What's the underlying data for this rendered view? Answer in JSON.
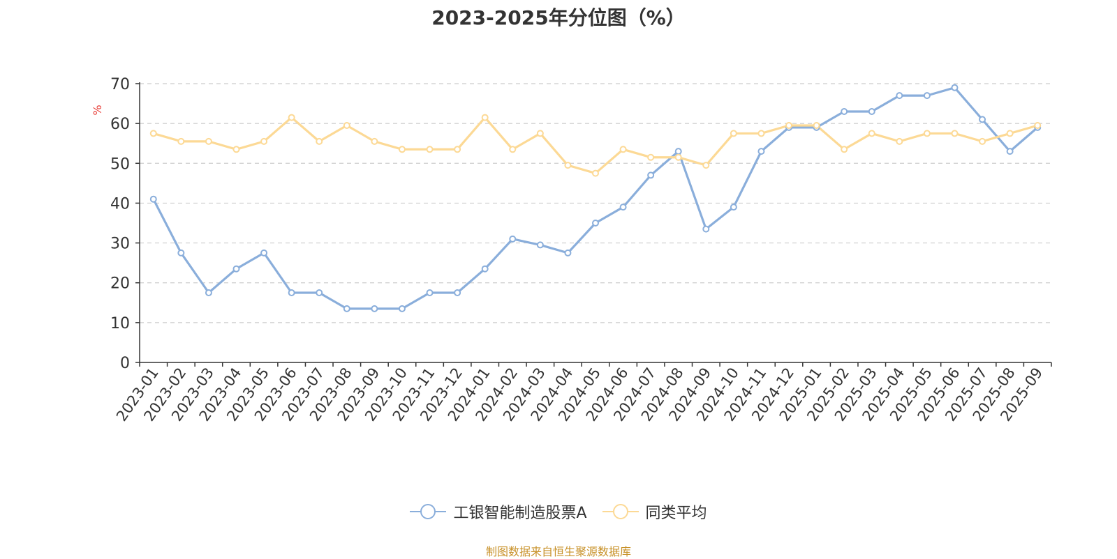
{
  "chart_data": {
    "type": "line",
    "title": "2023-2025年分位图（%）",
    "ylabel": "%",
    "xlabel": "",
    "ylim": [
      0,
      70
    ],
    "yticks": [
      0,
      10,
      20,
      30,
      40,
      50,
      60,
      70
    ],
    "grid": true,
    "legend_position": "bottom",
    "categories": [
      "2023-01",
      "2023-02",
      "2023-03",
      "2023-04",
      "2023-05",
      "2023-06",
      "2023-07",
      "2023-08",
      "2023-09",
      "2023-10",
      "2023-11",
      "2023-12",
      "2024-01",
      "2024-02",
      "2024-03",
      "2024-04",
      "2024-05",
      "2024-06",
      "2024-07",
      "2024-08",
      "2024-09",
      "2024-10",
      "2024-11",
      "2024-12",
      "2025-01",
      "2025-02",
      "2025-03",
      "2025-04",
      "2025-05",
      "2025-06",
      "2025-07",
      "2025-08",
      "2025-09"
    ],
    "series": [
      {
        "name": "工银智能制造股票A",
        "color": "#8aaedb",
        "values": [
          41,
          27.5,
          17.5,
          23.5,
          27.5,
          17.5,
          17.5,
          13.5,
          13.5,
          13.5,
          17.5,
          17.5,
          23.5,
          31,
          29.5,
          27.5,
          35,
          39,
          47,
          53,
          33.5,
          39,
          53,
          59,
          59,
          63,
          63,
          67,
          67,
          69,
          61,
          53,
          59
        ]
      },
      {
        "name": "同类平均",
        "color": "#fcd995",
        "values": [
          57.5,
          55.5,
          55.5,
          53.5,
          55.5,
          61.5,
          55.5,
          59.5,
          55.5,
          53.5,
          53.5,
          53.5,
          61.5,
          53.5,
          57.5,
          49.5,
          47.5,
          53.5,
          51.5,
          51.5,
          49.5,
          57.5,
          57.5,
          59.5,
          59.5,
          53.5,
          57.5,
          55.5,
          57.5,
          57.5,
          55.5,
          57.5,
          59.5
        ]
      }
    ]
  },
  "source_note": "制图数据来自恒生聚源数据库",
  "colors": {
    "axis": "#333333",
    "grid": "#cccccc",
    "ylabel": "#e8413b",
    "source": "#c8922a"
  }
}
